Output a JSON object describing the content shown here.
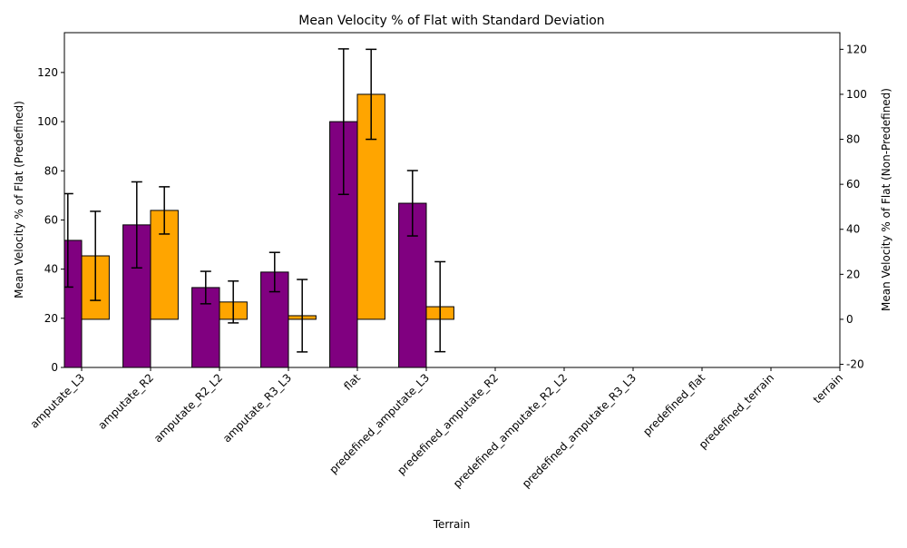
{
  "chart_data": {
    "type": "bar",
    "title": "Mean Velocity % of Flat with Standard Deviation",
    "xlabel": "Terrain",
    "ylabel": "Mean Velocity % of Flat (Predefined)",
    "y2label": "Mean Velocity % of Flat (Non-Predefined)",
    "categories": [
      "amputate_L3",
      "amputate_R2",
      "amputate_R2_L2",
      "amputate_R3_L3",
      "flat",
      "predefined_amputate_L3",
      "predefined_amputate_R2",
      "predefined_amputate_R2_L2",
      "predefined_amputate_R3_L3",
      "predefined_flat",
      "predefined_terrain",
      "terrain"
    ],
    "xlim": [
      -0.25,
      11
    ],
    "ylim": [
      0,
      136.2
    ],
    "yticks": [
      0,
      20,
      40,
      60,
      80,
      100,
      120
    ],
    "y2lim": [
      -21.4,
      127.4
    ],
    "y2ticks": [
      -20,
      0,
      20,
      40,
      60,
      80,
      100,
      120
    ],
    "series": [
      {
        "color": "#800080",
        "values": [
          51.7,
          58,
          32.5,
          38.8,
          100,
          66.8,
          null,
          null,
          null,
          null,
          null,
          null
        ],
        "errors": [
          19,
          17.5,
          6.6,
          8,
          29.6,
          13.3,
          null,
          null,
          null,
          null,
          null,
          null
        ]
      },
      {
        "color": "#ffa500",
        "axis": "y2",
        "values": [
          28.2,
          48.4,
          7.7,
          1.6,
          100,
          5.6,
          null,
          null,
          null,
          null,
          null,
          null
        ],
        "errors": [
          19.8,
          10.5,
          9.3,
          16.1,
          20,
          20,
          null,
          null,
          null,
          null,
          null,
          null
        ]
      }
    ]
  }
}
